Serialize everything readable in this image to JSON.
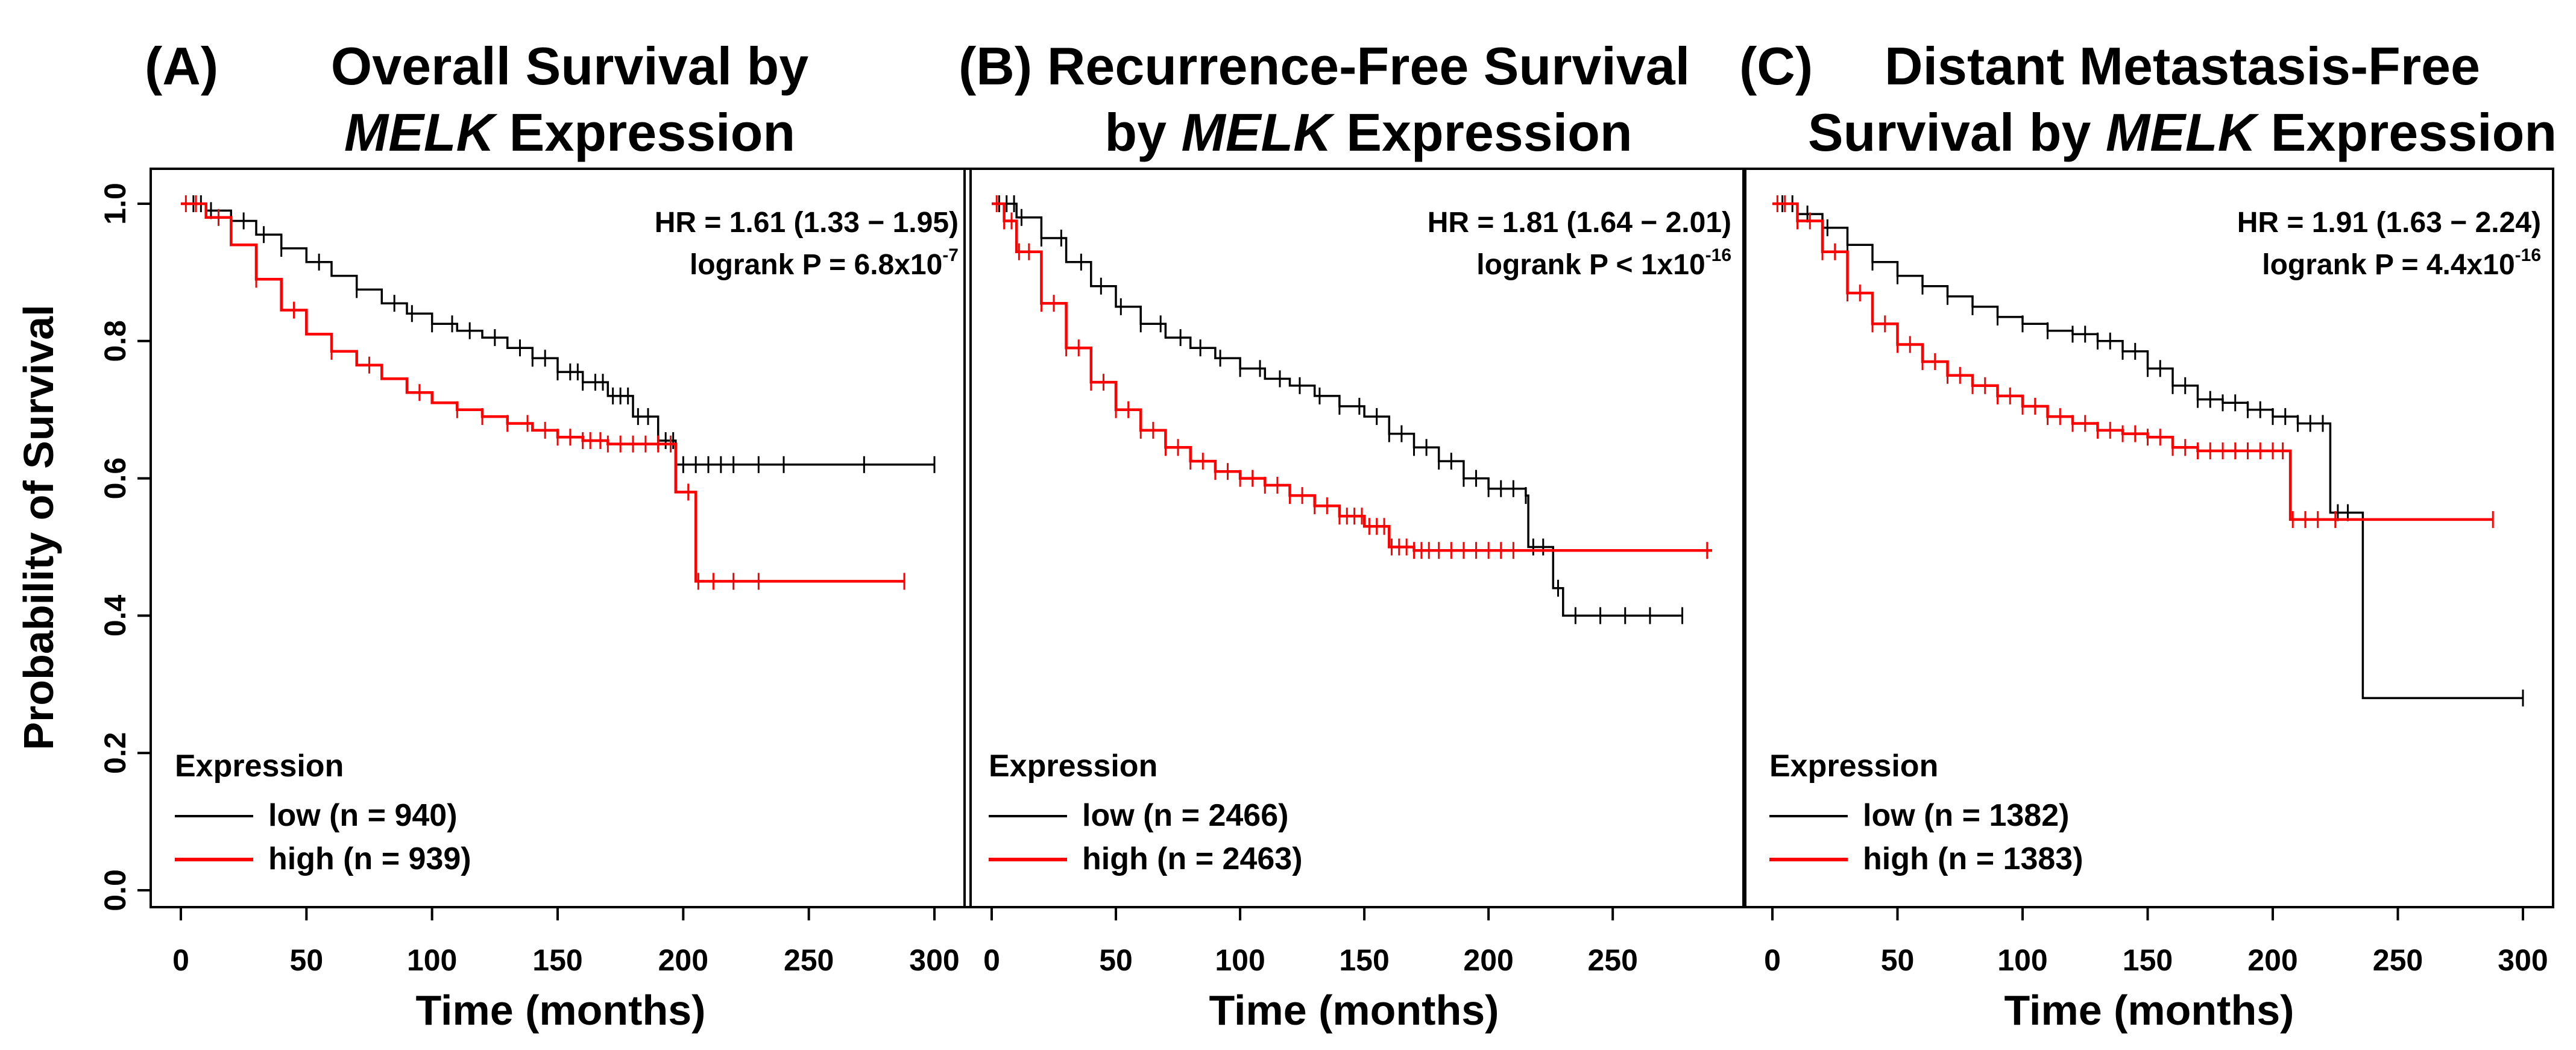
{
  "colors": {
    "low": "#000000",
    "high": "#ff0000"
  },
  "shared": {
    "ylabel": "Probability of Survival",
    "xlabel": "Time (months)",
    "legend_title": "Expression",
    "y_ticks": [
      "0.0",
      "0.2",
      "0.4",
      "0.6",
      "0.8",
      "1.0"
    ]
  },
  "chart_data": [
    {
      "type": "line",
      "panel_tag": "(A)",
      "title_lines": [
        [
          {
            "text": "Overall Survival by"
          }
        ],
        [
          {
            "text": "MELK",
            "italic": true
          },
          {
            "text": " Expression"
          }
        ]
      ],
      "xlim": [
        0,
        300
      ],
      "ylim": [
        0,
        1
      ],
      "x_ticks": [
        0,
        50,
        100,
        150,
        200,
        250,
        300
      ],
      "x_tick_labels": [
        "0",
        "50",
        "100",
        "150",
        "200",
        "250",
        "300"
      ],
      "hr_text": "HR = 1.61 (1.33 − 1.95)",
      "p_text": "logrank P = 6.8x10",
      "p_exp": "-7",
      "series": [
        {
          "name": "low (n = 940)",
          "color_key": "low",
          "points": [
            [
              0,
              1
            ],
            [
              10,
              0.99
            ],
            [
              20,
              0.975
            ],
            [
              30,
              0.955
            ],
            [
              40,
              0.935
            ],
            [
              50,
              0.915
            ],
            [
              60,
              0.895
            ],
            [
              70,
              0.875
            ],
            [
              80,
              0.855
            ],
            [
              90,
              0.84
            ],
            [
              100,
              0.825
            ],
            [
              110,
              0.815
            ],
            [
              120,
              0.805
            ],
            [
              130,
              0.79
            ],
            [
              140,
              0.775
            ],
            [
              150,
              0.755
            ],
            [
              160,
              0.74
            ],
            [
              170,
              0.72
            ],
            [
              180,
              0.69
            ],
            [
              190,
              0.655
            ],
            [
              197,
              0.62
            ],
            [
              240,
              0.62
            ],
            [
              300,
              0.62
            ]
          ],
          "censor": [
            5,
            8,
            12,
            25,
            33,
            40,
            55,
            70,
            85,
            92,
            100,
            108,
            115,
            125,
            135,
            140,
            145,
            150,
            155,
            158,
            160,
            165,
            168,
            172,
            175,
            178,
            182,
            186,
            190,
            193,
            196,
            200,
            205,
            210,
            215,
            220,
            230,
            240,
            272,
            300
          ]
        },
        {
          "name": "high (n = 939)",
          "color_key": "high",
          "points": [
            [
              0,
              1
            ],
            [
              10,
              0.98
            ],
            [
              20,
              0.94
            ],
            [
              30,
              0.89
            ],
            [
              40,
              0.845
            ],
            [
              50,
              0.81
            ],
            [
              60,
              0.785
            ],
            [
              70,
              0.765
            ],
            [
              80,
              0.745
            ],
            [
              90,
              0.725
            ],
            [
              100,
              0.71
            ],
            [
              110,
              0.7
            ],
            [
              120,
              0.69
            ],
            [
              130,
              0.68
            ],
            [
              140,
              0.67
            ],
            [
              150,
              0.66
            ],
            [
              160,
              0.655
            ],
            [
              170,
              0.65
            ],
            [
              180,
              0.65
            ],
            [
              196,
              0.65
            ],
            [
              197,
              0.58
            ],
            [
              204,
              0.58
            ],
            [
              205,
              0.45
            ],
            [
              250,
              0.45
            ],
            [
              288,
              0.45
            ]
          ],
          "censor": [
            2,
            6,
            15,
            30,
            45,
            60,
            75,
            95,
            110,
            120,
            130,
            138,
            145,
            150,
            155,
            160,
            163,
            167,
            170,
            175,
            180,
            185,
            190,
            195,
            202,
            206,
            212,
            220,
            230,
            288
          ]
        }
      ]
    },
    {
      "type": "line",
      "panel_tag": "(B)",
      "title_lines": [
        [
          {
            "text": "Recurrence-Free Survival"
          }
        ],
        [
          {
            "text": "by "
          },
          {
            "text": "MELK",
            "italic": true
          },
          {
            "text": " Expression"
          }
        ]
      ],
      "xlim": [
        0,
        290
      ],
      "ylim": [
        0,
        1
      ],
      "x_ticks": [
        0,
        50,
        100,
        150,
        200,
        250
      ],
      "x_tick_labels": [
        "0",
        "50",
        "100",
        "150",
        "200",
        "250"
      ],
      "hr_text": "HR = 1.81 (1.64 − 2.01)",
      "p_text": "logrank P < 1x10",
      "p_exp": "-16",
      "series": [
        {
          "name": "low (n = 2466)",
          "color_key": "low",
          "points": [
            [
              0,
              1
            ],
            [
              10,
              0.98
            ],
            [
              20,
              0.95
            ],
            [
              30,
              0.915
            ],
            [
              40,
              0.88
            ],
            [
              50,
              0.85
            ],
            [
              60,
              0.825
            ],
            [
              70,
              0.805
            ],
            [
              80,
              0.79
            ],
            [
              90,
              0.775
            ],
            [
              100,
              0.76
            ],
            [
              110,
              0.745
            ],
            [
              120,
              0.735
            ],
            [
              130,
              0.72
            ],
            [
              140,
              0.705
            ],
            [
              150,
              0.69
            ],
            [
              160,
              0.665
            ],
            [
              170,
              0.645
            ],
            [
              180,
              0.625
            ],
            [
              190,
              0.6
            ],
            [
              200,
              0.585
            ],
            [
              215,
              0.575
            ],
            [
              216,
              0.5
            ],
            [
              225,
              0.5
            ],
            [
              226,
              0.44
            ],
            [
              230,
              0.4
            ],
            [
              278,
              0.4
            ]
          ],
          "censor": [
            3,
            6,
            9,
            12,
            20,
            28,
            36,
            44,
            52,
            60,
            68,
            76,
            84,
            92,
            100,
            108,
            116,
            124,
            132,
            140,
            148,
            155,
            160,
            165,
            170,
            175,
            180,
            185,
            190,
            195,
            200,
            205,
            210,
            215,
            218,
            222,
            228,
            235,
            245,
            255,
            265,
            278
          ]
        },
        {
          "name": "high (n = 2463)",
          "color_key": "high",
          "points": [
            [
              0,
              1
            ],
            [
              5,
              0.975
            ],
            [
              10,
              0.93
            ],
            [
              20,
              0.855
            ],
            [
              30,
              0.79
            ],
            [
              40,
              0.74
            ],
            [
              50,
              0.7
            ],
            [
              60,
              0.67
            ],
            [
              70,
              0.645
            ],
            [
              80,
              0.625
            ],
            [
              90,
              0.61
            ],
            [
              100,
              0.6
            ],
            [
              110,
              0.59
            ],
            [
              120,
              0.575
            ],
            [
              130,
              0.56
            ],
            [
              140,
              0.545
            ],
            [
              150,
              0.53
            ],
            [
              160,
              0.5
            ],
            [
              170,
              0.495
            ],
            [
              180,
              0.495
            ],
            [
              290,
              0.495
            ]
          ],
          "censor": [
            2,
            5,
            8,
            11,
            15,
            20,
            25,
            30,
            35,
            40,
            45,
            50,
            55,
            60,
            65,
            70,
            75,
            80,
            85,
            90,
            95,
            100,
            105,
            110,
            115,
            120,
            125,
            130,
            135,
            140,
            143,
            146,
            149,
            152,
            155,
            158,
            161,
            164,
            167,
            170,
            173,
            176,
            180,
            185,
            190,
            195,
            200,
            205,
            210,
            288
          ]
        }
      ]
    },
    {
      "type": "line",
      "panel_tag": "(C)",
      "title_lines": [
        [
          {
            "text": "Distant Metastasis-Free"
          }
        ],
        [
          {
            "text": "Survival by "
          },
          {
            "text": "MELK",
            "italic": true
          },
          {
            "text": " Expression"
          }
        ]
      ],
      "xlim": [
        0,
        300
      ],
      "ylim": [
        0,
        1
      ],
      "x_ticks": [
        0,
        50,
        100,
        150,
        200,
        250,
        300
      ],
      "x_tick_labels": [
        "0",
        "50",
        "100",
        "150",
        "200",
        "250",
        "300"
      ],
      "hr_text": "HR = 1.91 (1.63 − 2.24)",
      "p_text": "logrank P = 4.4x10",
      "p_exp": "-16",
      "series": [
        {
          "name": "low (n = 1382)",
          "color_key": "low",
          "points": [
            [
              0,
              1
            ],
            [
              10,
              0.985
            ],
            [
              20,
              0.965
            ],
            [
              30,
              0.94
            ],
            [
              40,
              0.915
            ],
            [
              50,
              0.895
            ],
            [
              60,
              0.88
            ],
            [
              70,
              0.865
            ],
            [
              80,
              0.85
            ],
            [
              90,
              0.835
            ],
            [
              100,
              0.825
            ],
            [
              110,
              0.815
            ],
            [
              120,
              0.81
            ],
            [
              130,
              0.8
            ],
            [
              140,
              0.785
            ],
            [
              150,
              0.76
            ],
            [
              160,
              0.735
            ],
            [
              170,
              0.715
            ],
            [
              180,
              0.71
            ],
            [
              190,
              0.7
            ],
            [
              200,
              0.69
            ],
            [
              210,
              0.68
            ],
            [
              222,
              0.68
            ],
            [
              223,
              0.55
            ],
            [
              235,
              0.55
            ],
            [
              236,
              0.28
            ],
            [
              300,
              0.28
            ]
          ],
          "censor": [
            4,
            8,
            14,
            22,
            30,
            40,
            50,
            60,
            70,
            80,
            90,
            100,
            110,
            120,
            125,
            130,
            135,
            140,
            145,
            150,
            155,
            160,
            165,
            170,
            175,
            180,
            185,
            190,
            195,
            200,
            205,
            210,
            215,
            220,
            226,
            230,
            300
          ]
        },
        {
          "name": "high (n = 1383)",
          "color_key": "high",
          "points": [
            [
              0,
              1
            ],
            [
              10,
              0.975
            ],
            [
              20,
              0.93
            ],
            [
              30,
              0.87
            ],
            [
              40,
              0.825
            ],
            [
              50,
              0.795
            ],
            [
              60,
              0.77
            ],
            [
              70,
              0.75
            ],
            [
              80,
              0.735
            ],
            [
              90,
              0.72
            ],
            [
              100,
              0.705
            ],
            [
              110,
              0.69
            ],
            [
              120,
              0.68
            ],
            [
              130,
              0.67
            ],
            [
              140,
              0.665
            ],
            [
              150,
              0.66
            ],
            [
              160,
              0.645
            ],
            [
              170,
              0.64
            ],
            [
              180,
              0.64
            ],
            [
              206,
              0.64
            ],
            [
              207,
              0.54
            ],
            [
              288,
              0.54
            ]
          ],
          "censor": [
            2,
            5,
            10,
            15,
            20,
            25,
            30,
            35,
            40,
            45,
            50,
            55,
            60,
            65,
            70,
            75,
            80,
            85,
            90,
            95,
            100,
            105,
            110,
            115,
            120,
            125,
            130,
            135,
            140,
            145,
            150,
            155,
            160,
            165,
            170,
            175,
            180,
            185,
            190,
            195,
            200,
            204,
            208,
            213,
            218,
            225,
            288
          ]
        }
      ]
    }
  ]
}
